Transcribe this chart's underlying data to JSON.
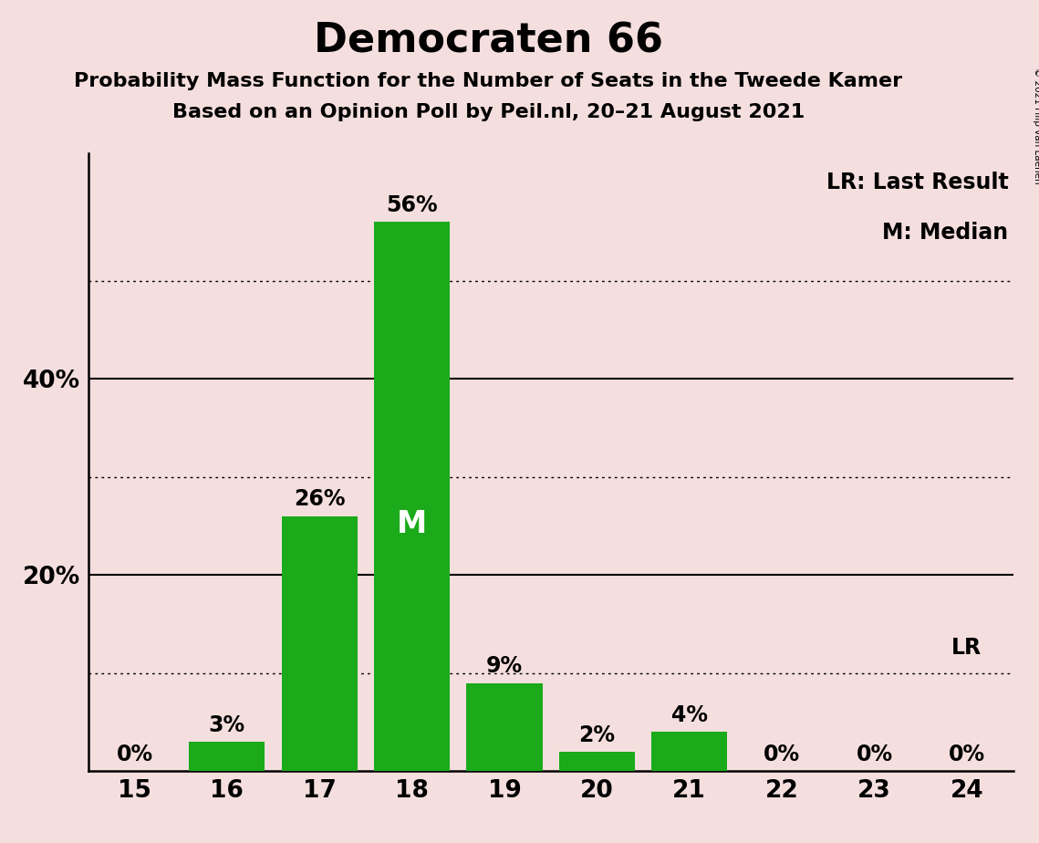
{
  "title": "Democraten 66",
  "subtitle1": "Probability Mass Function for the Number of Seats in the Tweede Kamer",
  "subtitle2": "Based on an Opinion Poll by Peil.nl, 20–21 August 2021",
  "categories": [
    15,
    16,
    17,
    18,
    19,
    20,
    21,
    22,
    23,
    24
  ],
  "values": [
    0,
    3,
    26,
    56,
    9,
    2,
    4,
    0,
    0,
    0
  ],
  "bar_color": "#1aaa1a",
  "background_color": "#f5dede",
  "median_bar": 18,
  "lr_bar": 24,
  "legend_text1": "LR: Last Result",
  "legend_text2": "M: Median",
  "copyright_text": "© 2021 Filip van Laenen",
  "dotted_lines": [
    10,
    30,
    50
  ],
  "solid_lines": [
    20,
    40
  ],
  "xlim": [
    14.5,
    24.5
  ],
  "ylim": [
    0,
    63
  ],
  "title_fontsize": 32,
  "subtitle_fontsize": 16,
  "label_fontsize": 17,
  "tick_fontsize": 19,
  "legend_fontsize": 17
}
